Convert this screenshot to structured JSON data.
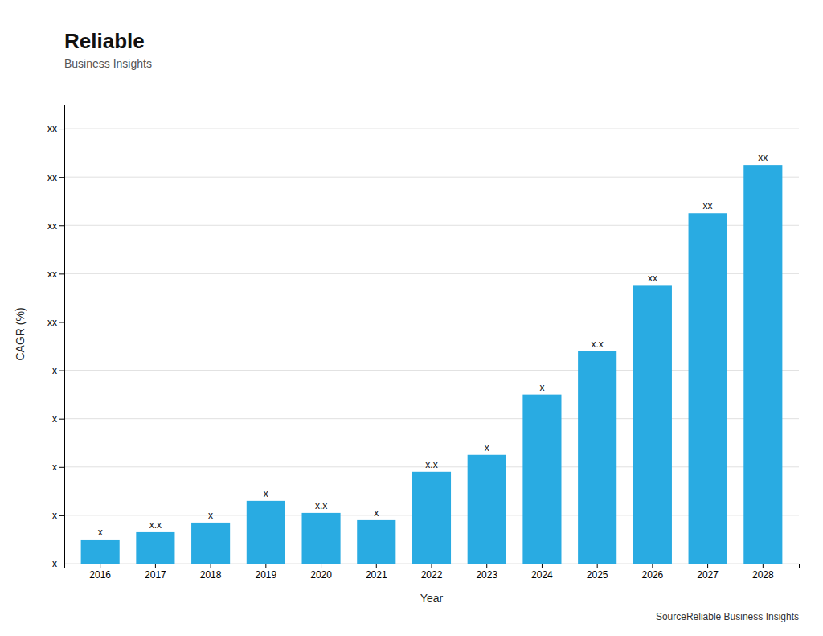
{
  "chart_data": {
    "type": "bar",
    "categories": [
      "2016",
      "2017",
      "2018",
      "2019",
      "2020",
      "2021",
      "2022",
      "2023",
      "2024",
      "2025",
      "2026",
      "2027",
      "2028"
    ],
    "values": [
      1.0,
      1.3,
      1.7,
      2.6,
      2.1,
      1.8,
      3.8,
      4.5,
      7.0,
      8.8,
      11.5,
      14.5,
      16.5
    ],
    "value_labels": [
      "x",
      "x.x",
      "x",
      "x",
      "x.x",
      "x",
      "x.x",
      "x",
      "x",
      "x.x",
      "xx",
      "xx",
      "xx"
    ],
    "data_labels": true,
    "color": "#29ABE2",
    "xlabel": "Year",
    "ylabel": "CAGR (%)",
    "ylim": [
      0,
      19
    ],
    "yticks": [
      {
        "value": 0,
        "label": "x"
      },
      {
        "value": 2,
        "label": "x"
      },
      {
        "value": 4,
        "label": "x"
      },
      {
        "value": 6,
        "label": "x"
      },
      {
        "value": 8,
        "label": "x"
      },
      {
        "value": 10,
        "label": "xx"
      },
      {
        "value": 12,
        "label": "xx"
      },
      {
        "value": 14,
        "label": "xx"
      },
      {
        "value": 16,
        "label": "xx"
      },
      {
        "value": 18,
        "label": "xx"
      }
    ],
    "grid": true,
    "annotations": [
      "SourceReliable Business Insights",
      "Reliable",
      "Business Insights"
    ]
  }
}
